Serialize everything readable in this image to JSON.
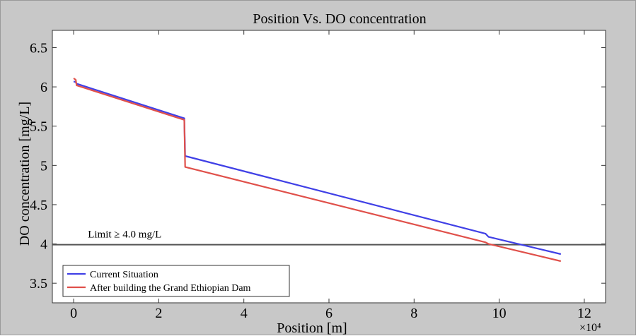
{
  "chart_data": {
    "type": "line",
    "title": "Position Vs. DO concentration",
    "xlabel": "Position [m]",
    "ylabel": "DO concentration [mg/L]",
    "x_multiplier_label": "×10⁴",
    "xlim": [
      -0.5,
      12.5
    ],
    "ylim": [
      3.25,
      6.72
    ],
    "x_ticks": [
      0,
      2,
      4,
      6,
      8,
      10,
      12
    ],
    "y_ticks": [
      3.5,
      4,
      4.5,
      5,
      5.5,
      6,
      6.5
    ],
    "grid": false,
    "legend_position": "bottom-left",
    "series": [
      {
        "name": "Current Situation",
        "color": "#4040e6",
        "x": [
          0,
          0.05,
          0.07,
          2.6,
          2.6,
          2.62,
          9.68,
          9.75,
          11.45
        ],
        "y": [
          6.07,
          6.06,
          6.04,
          5.6,
          5.6,
          5.12,
          4.13,
          4.09,
          3.87
        ]
      },
      {
        "name": "After building the Grand Ethiopian Dam",
        "color": "#e0504a",
        "x": [
          0,
          0.05,
          0.07,
          2.6,
          2.6,
          2.62,
          9.68,
          9.75,
          11.45
        ],
        "y": [
          6.11,
          6.09,
          6.02,
          5.58,
          5.58,
          4.98,
          4.02,
          4.0,
          3.78
        ]
      }
    ],
    "reference_line": {
      "y": 3.99,
      "label": "Limit ≥ 4.0 mg/L",
      "color": "#555555"
    }
  }
}
